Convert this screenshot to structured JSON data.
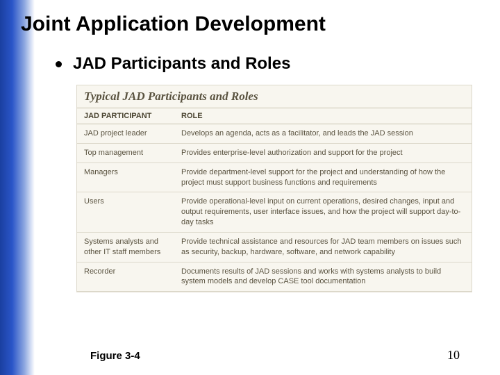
{
  "slide": {
    "title": "Joint Application Development",
    "bullet": "JAD Participants and Roles",
    "figure_label": "Figure 3-4",
    "page_number": "10"
  },
  "figure": {
    "title": "Typical JAD Participants and Roles",
    "columns": [
      "JAD PARTICIPANT",
      "ROLE"
    ],
    "rows": [
      {
        "participant": "JAD project leader",
        "role": "Develops an agenda, acts as a facilitator, and leads the JAD session"
      },
      {
        "participant": "Top management",
        "role": "Provides enterprise-level authorization and support for the project"
      },
      {
        "participant": "Managers",
        "role": "Provide department-level support for the project and understanding of how the project must support business functions and requirements"
      },
      {
        "participant": "Users",
        "role": "Provide operational-level input on current operations, desired changes, input and output requirements, user interface issues, and how the project will support day-to-day tasks"
      },
      {
        "participant": "Systems analysts and other IT staff members",
        "role": "Provide technical assistance and resources for JAD team members on issues such as security, backup, hardware, software, and network capability"
      },
      {
        "participant": "Recorder",
        "role": "Documents results of JAD sessions and works with systems analysts to build system models and develop CASE tool documentation"
      }
    ]
  },
  "style": {
    "stripe_gradient": [
      "#1a3fa0",
      "#2a55c8",
      "#8ca6e0",
      "#ffffff"
    ],
    "figure_bg": "#f8f6ef",
    "figure_border": "#dcd8ca",
    "header_border": "#c8c3b0",
    "text_color": "#5a5340"
  }
}
